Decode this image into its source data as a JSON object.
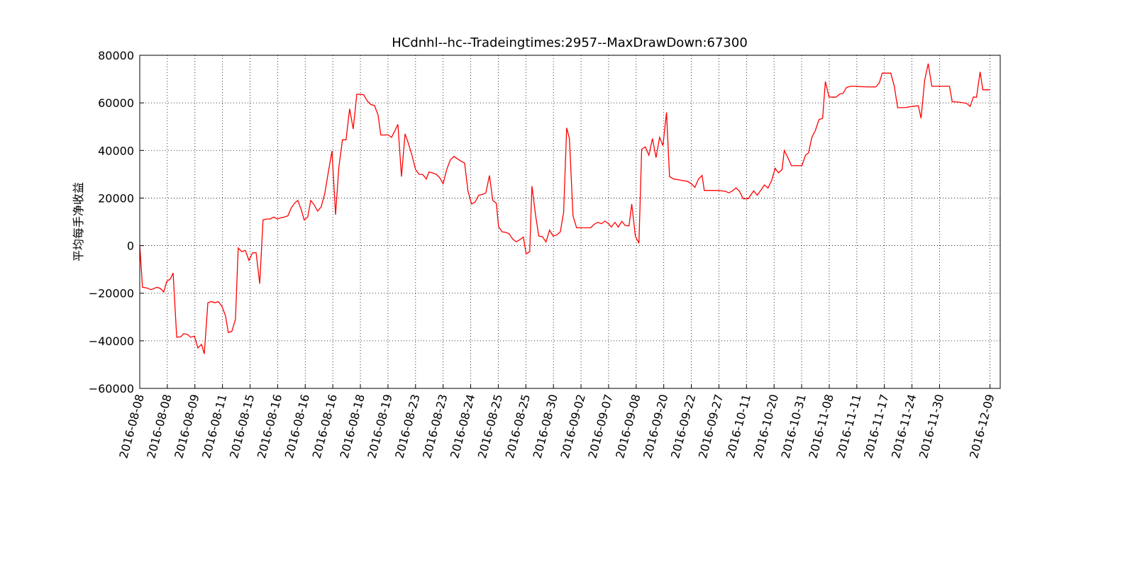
{
  "chart_data": {
    "type": "line",
    "title": "HCdnhl--hc--Tradeingtimes:2957--MaxDrawDown:67300",
    "y_label": "平均每手净收益",
    "grid": true,
    "xlim": [
      0,
      312
    ],
    "ylim": [
      -60000,
      80000
    ],
    "yticks": [
      {
        "value": -60000,
        "label": "−60000"
      },
      {
        "value": -40000,
        "label": "−40000"
      },
      {
        "value": -20000,
        "label": "−20000"
      },
      0,
      20000,
      40000,
      60000,
      80000
    ],
    "xticks": [
      {
        "value": 0,
        "label": "2016-08-08"
      },
      {
        "value": 10,
        "label": "2016-08-08"
      },
      {
        "value": 20,
        "label": "2016-08-09"
      },
      {
        "value": 30,
        "label": "2016-08-11"
      },
      {
        "value": 40,
        "label": "2016-08-15"
      },
      {
        "value": 50,
        "label": "2016-08-16"
      },
      {
        "value": 60,
        "label": "2016-08-16"
      },
      {
        "value": 70,
        "label": "2016-08-16"
      },
      {
        "value": 80,
        "label": "2016-08-18"
      },
      {
        "value": 90,
        "label": "2016-08-19"
      },
      {
        "value": 100,
        "label": "2016-08-23"
      },
      {
        "value": 110,
        "label": "2016-08-23"
      },
      {
        "value": 120,
        "label": "2016-08-24"
      },
      {
        "value": 130,
        "label": "2016-08-25"
      },
      {
        "value": 140,
        "label": "2016-08-25"
      },
      {
        "value": 150,
        "label": "2016-08-30"
      },
      {
        "value": 160,
        "label": "2016-09-02"
      },
      {
        "value": 170,
        "label": "2016-09-07"
      },
      {
        "value": 180,
        "label": "2016-09-08"
      },
      {
        "value": 190,
        "label": "2016-09-20"
      },
      {
        "value": 200,
        "label": "2016-09-22"
      },
      {
        "value": 210,
        "label": "2016-09-27"
      },
      {
        "value": 220,
        "label": "2016-10-11"
      },
      {
        "value": 230,
        "label": "2016-10-20"
      },
      {
        "value": 240,
        "label": "2016-10-31"
      },
      {
        "value": 250,
        "label": "2016-11-08"
      },
      {
        "value": 260,
        "label": "2016-11-11"
      },
      {
        "value": 270,
        "label": "2016-11-17"
      },
      {
        "value": 280,
        "label": "2016-11-24"
      },
      {
        "value": 290,
        "label": "2016-11-30"
      },
      {
        "value": 308.3,
        "label": "2016-12-09"
      }
    ],
    "x": [
      0,
      1.0,
      2.6,
      4.1,
      6.2,
      7.5,
      8.7,
      9.8,
      11.1,
      12.1,
      13.4,
      14.9,
      15.9,
      17.2,
      18.5,
      19.8,
      21.1,
      22.4,
      23.4,
      24.7,
      26.0,
      27.3,
      28.5,
      29.8,
      31.1,
      32.1,
      33.4,
      34.7,
      35.7,
      37.0,
      38.3,
      39.6,
      40.9,
      42.2,
      43.5,
      44.7,
      46.0,
      47.3,
      48.6,
      49.9,
      51.2,
      52.4,
      53.7,
      55.0,
      56.3,
      57.3,
      58.6,
      59.6,
      60.9,
      62.0,
      63.2,
      64.5,
      65.8,
      67.1,
      68.4,
      69.7,
      71.0,
      72.2,
      73.5,
      74.8,
      76.1,
      77.4,
      78.7,
      80.0,
      81.2,
      82.5,
      83.8,
      85.1,
      86.4,
      87.4,
      88.7,
      90.0,
      91.3,
      92.6,
      93.6,
      94.9,
      96.2,
      97.4,
      98.7,
      100.0,
      101.3,
      102.6,
      103.9,
      104.9,
      106.2,
      107.5,
      108.8,
      110.0,
      111.3,
      112.6,
      113.9,
      115.2,
      116.5,
      117.8,
      119.0,
      120.3,
      121.6,
      122.9,
      124.2,
      125.5,
      126.8,
      128.0,
      129.3,
      130.1,
      131.4,
      132.7,
      133.9,
      135.2,
      136.5,
      137.8,
      139.1,
      140.1,
      141.4,
      142.2,
      143.5,
      144.7,
      146.0,
      147.3,
      148.6,
      149.9,
      151.2,
      152.5,
      153.7,
      154.8,
      155.8,
      157.1,
      158.4,
      159.7,
      160.9,
      162.2,
      163.5,
      164.8,
      166.1,
      167.4,
      168.7,
      169.9,
      171.0,
      172.3,
      173.5,
      174.8,
      176.1,
      177.4,
      178.4,
      179.7,
      181.0,
      182.0,
      183.3,
      184.6,
      185.9,
      187.2,
      188.5,
      189.7,
      191.0,
      192.1,
      193.6,
      196.2,
      198.7,
      200.0,
      201.3,
      202.6,
      203.9,
      204.7,
      207.2,
      209.8,
      212.4,
      213.6,
      214.9,
      216.2,
      217.5,
      218.8,
      220.6,
      222.6,
      223.9,
      225.2,
      226.5,
      227.8,
      229.1,
      230.4,
      231.6,
      232.9,
      233.7,
      235.0,
      236.3,
      237.6,
      238.8,
      240.1,
      241.4,
      242.5,
      243.7,
      245.0,
      246.3,
      247.6,
      248.6,
      249.9,
      251.2,
      252.5,
      253.8,
      255.0,
      256.3,
      257.9,
      259.2,
      261.7,
      264.3,
      266.9,
      268.2,
      269.2,
      270.7,
      272.3,
      273.6,
      274.8,
      277.4,
      280.0,
      282.3,
      283.3,
      284.6,
      285.9,
      287.2,
      289.8,
      292.3,
      293.6,
      294.6,
      297.2,
      299.8,
      301.1,
      302.3,
      303.4,
      304.7,
      305.7,
      308.3
    ],
    "series": [
      {
        "color": "#ff0000",
        "values": [
          0,
          -17500,
          -17800,
          -18500,
          -17500,
          -18000,
          -19500,
          -15000,
          -14000,
          -11500,
          -38500,
          -38300,
          -37000,
          -37300,
          -38500,
          -38000,
          -43000,
          -41500,
          -45500,
          -24000,
          -23500,
          -24000,
          -23500,
          -25500,
          -29500,
          -36500,
          -36000,
          -31000,
          -1000,
          -2500,
          -2000,
          -6200,
          -3000,
          -3000,
          -16000,
          10800,
          11200,
          11200,
          12000,
          11200,
          11700,
          12000,
          12500,
          16000,
          18000,
          19000,
          15000,
          10800,
          12000,
          19000,
          17200,
          14500,
          16300,
          22000,
          31000,
          39800,
          13000,
          33000,
          44500,
          44500,
          57500,
          49000,
          63600,
          63600,
          63400,
          60800,
          59300,
          58900,
          55000,
          46500,
          46500,
          46600,
          45500,
          48500,
          51000,
          29000,
          47000,
          43000,
          38000,
          32000,
          30000,
          29900,
          28000,
          31000,
          30500,
          30000,
          28500,
          26000,
          32000,
          36000,
          37500,
          36500,
          35500,
          34700,
          23000,
          17500,
          18300,
          21200,
          21500,
          22200,
          29500,
          19000,
          17800,
          8000,
          5800,
          5600,
          5000,
          2800,
          1600,
          2500,
          3600,
          -3500,
          -2500,
          25000,
          13000,
          4000,
          3800,
          1500,
          6500,
          4000,
          4500,
          5800,
          14000,
          49500,
          45000,
          12500,
          7500,
          7500,
          7500,
          7500,
          7500,
          9000,
          9800,
          9200,
          10300,
          9300,
          7800,
          9800,
          7800,
          10200,
          8400,
          8300,
          17500,
          4000,
          1000,
          40500,
          41500,
          38000,
          45000,
          37000,
          45500,
          42000,
          56000,
          29000,
          28000,
          27500,
          27000,
          26000,
          24500,
          28000,
          29500,
          23200,
          23200,
          23200,
          22800,
          22200,
          23000,
          24300,
          22800,
          19700,
          19700,
          23000,
          21200,
          23300,
          25500,
          24200,
          27300,
          32500,
          30600,
          32000,
          40000,
          37000,
          33600,
          33600,
          33600,
          33600,
          38000,
          39000,
          45500,
          48500,
          53000,
          53500,
          69000,
          62500,
          62400,
          62400,
          63700,
          64000,
          66500,
          67000,
          67000,
          66800,
          66700,
          66700,
          68500,
          72500,
          72500,
          72500,
          67000,
          58000,
          58000,
          58500,
          58800,
          53500,
          69500,
          76500,
          67000,
          67000,
          67000,
          67000,
          60500,
          60300,
          59800,
          58500,
          62500,
          62300,
          73000,
          65500,
          65500
        ]
      }
    ]
  }
}
